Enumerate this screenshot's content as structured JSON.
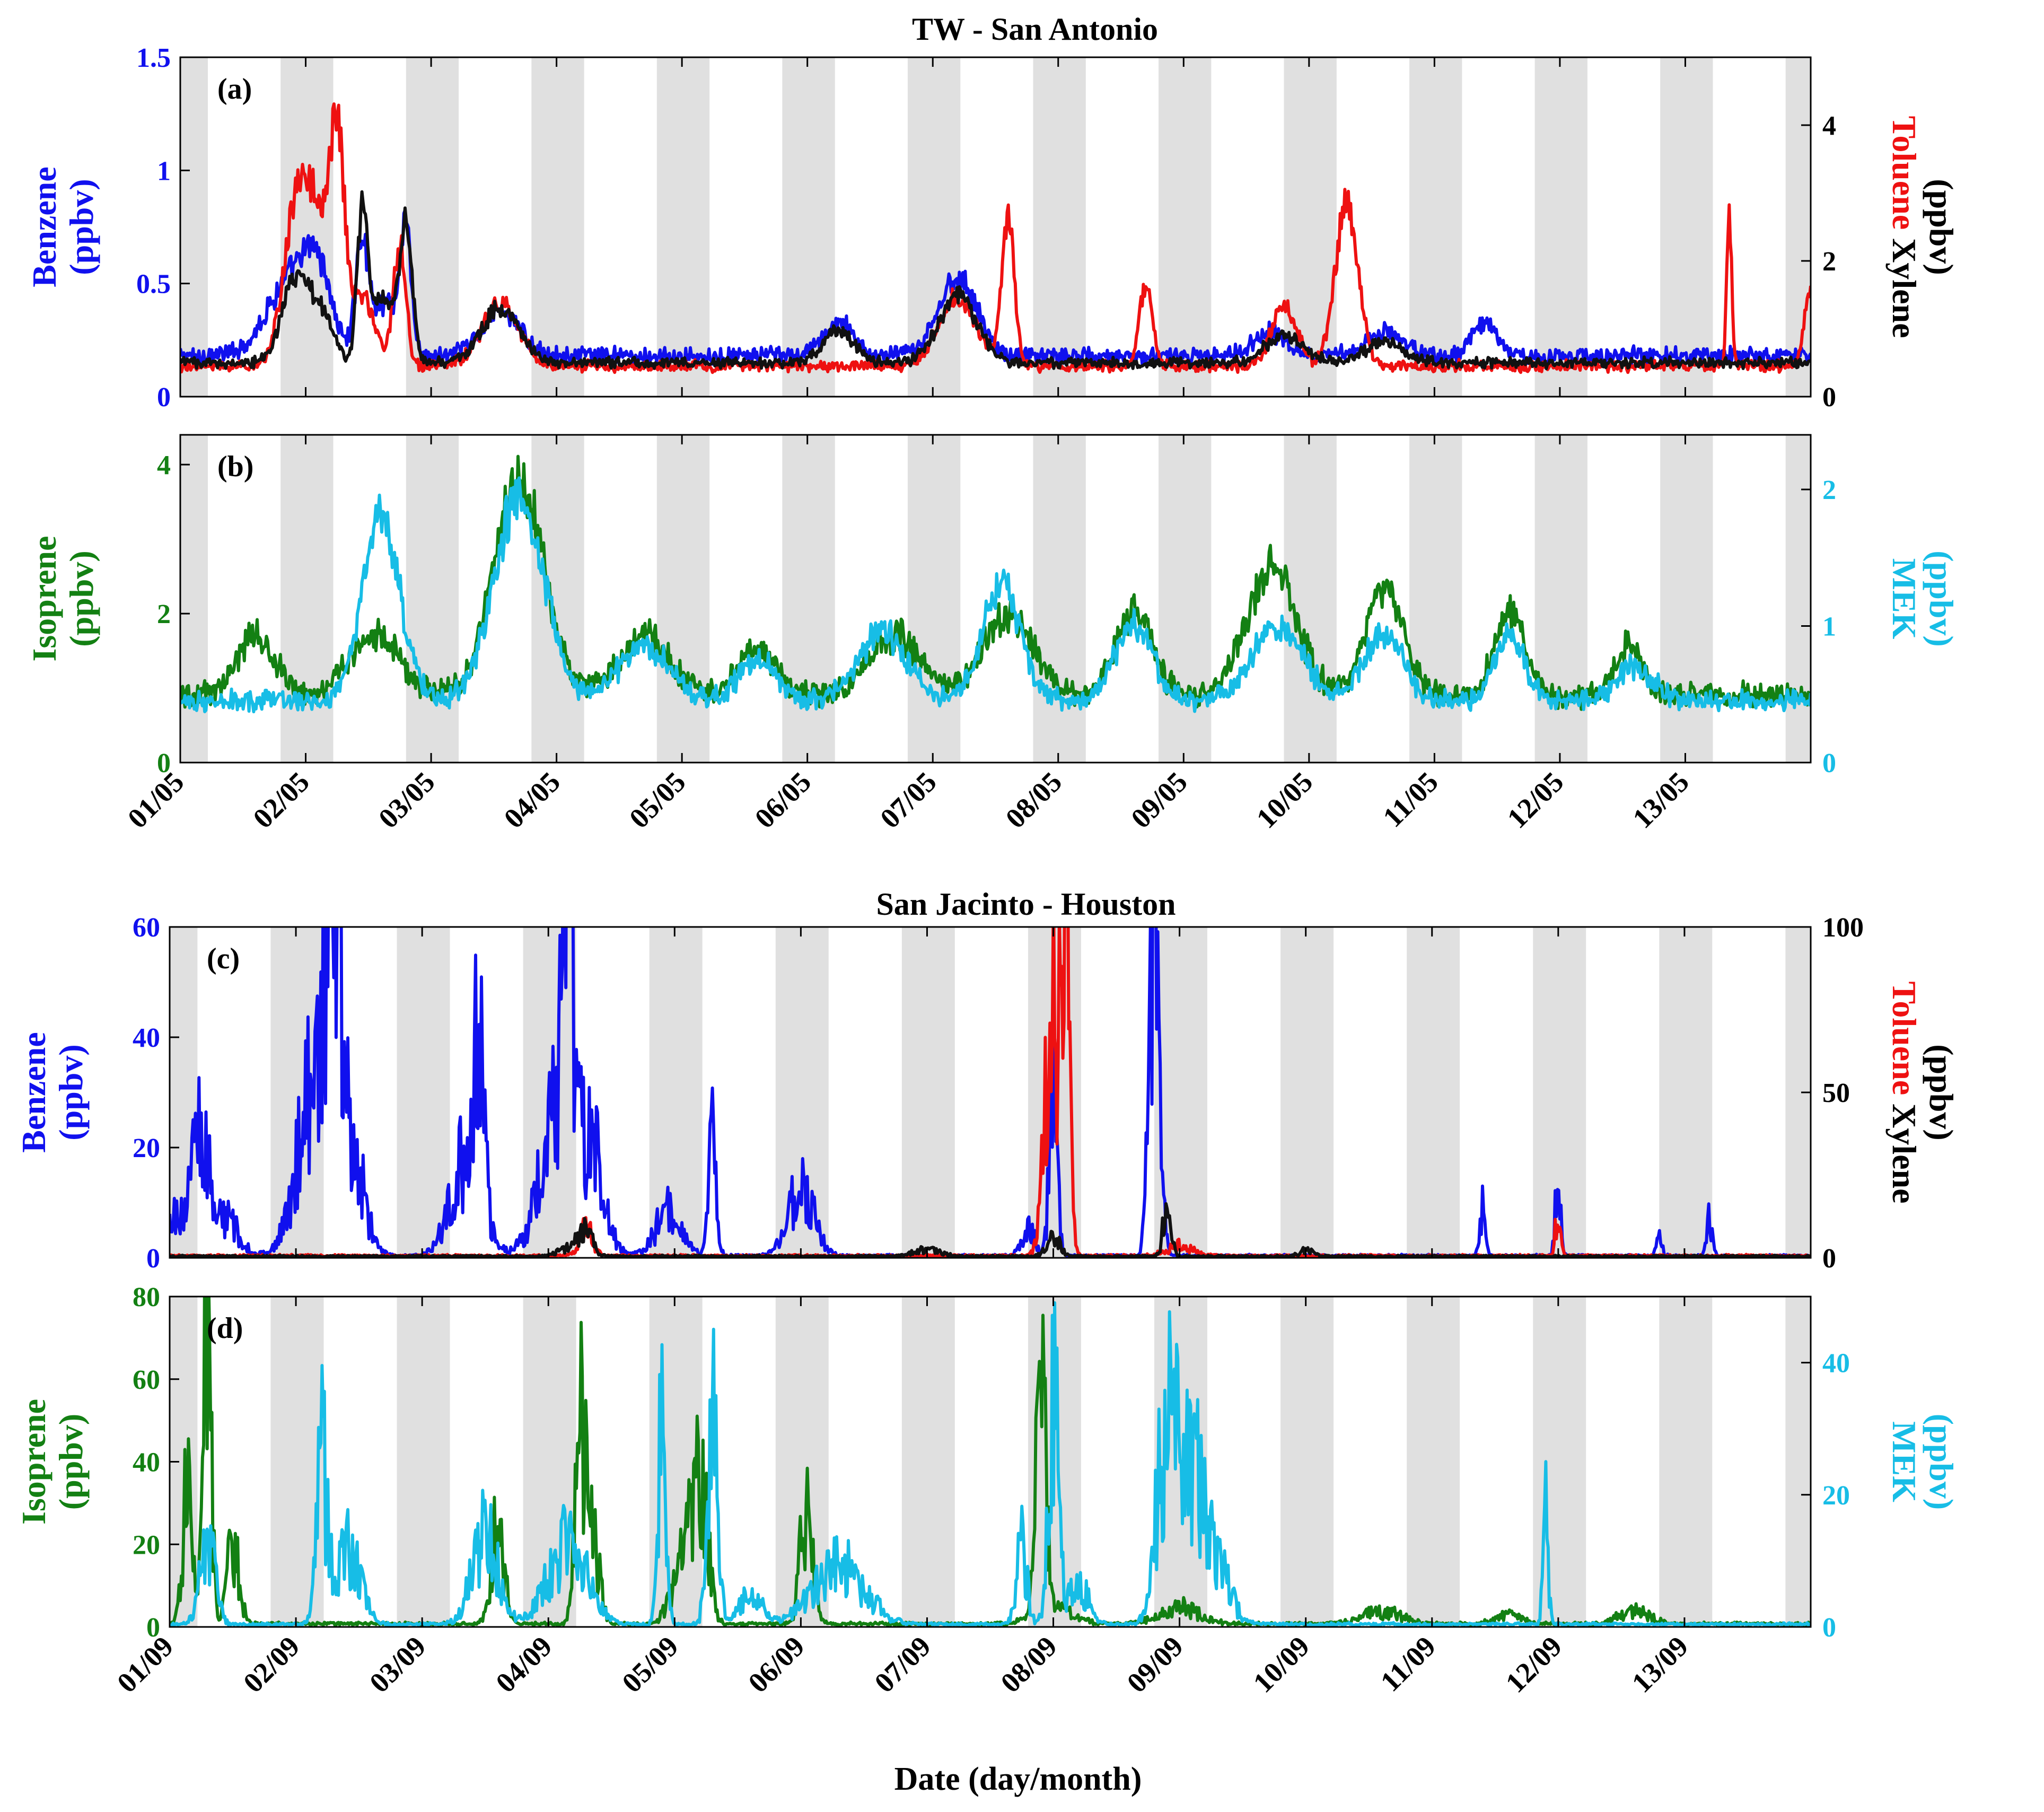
{
  "figure": {
    "top_title": "TW - San Antonio",
    "bottom_title": "San Jacinto - Houston",
    "xlabel": "Date (day/month)"
  },
  "colors": {
    "benzene": "#1010ee",
    "toluene": "#ee1111",
    "xylene": "#111111",
    "isoprene": "#138013",
    "mek": "#17bde6",
    "night_shade": "#e0e0e0"
  },
  "chart_data": [
    {
      "id": "a",
      "type": "line",
      "panel_label": "(a)",
      "title": "TW - San Antonio",
      "x_days": [
        1,
        14
      ],
      "night_shading": true,
      "left_axis": {
        "label_line1": "Benzene",
        "label_line2": "(ppbv)",
        "ylim": [
          0,
          1.5
        ],
        "ticks": [
          0,
          0.5,
          1,
          1.5
        ],
        "tick_labels": [
          "0",
          "0.5",
          "1",
          "1.5"
        ],
        "color_key": "benzene"
      },
      "right_axis": {
        "label_color_word": "Toluene",
        "label_black_word": "Xylene",
        "label_units": "(ppbv)",
        "ylim": [
          0,
          5
        ],
        "ticks": [
          0,
          2,
          4
        ],
        "tick_labels": [
          "0",
          "2",
          "4"
        ]
      },
      "series": [
        {
          "name": "Benzene",
          "axis": "left",
          "color_key": "benzene",
          "baseline": 0.18,
          "noise": 0.03,
          "bumps": [
            [
              1.9,
              0.35,
              0.2
            ],
            [
              2.1,
              0.25,
              0.1
            ],
            [
              2.45,
              0.5,
              0.05
            ],
            [
              2.65,
              0.25,
              0.1
            ],
            [
              2.8,
              0.55,
              0.04
            ],
            [
              3.55,
              0.2,
              0.15
            ],
            [
              6.25,
              0.15,
              0.12
            ],
            [
              7.2,
              0.35,
              0.15
            ],
            [
              9.7,
              0.1,
              0.15
            ],
            [
              10.6,
              0.1,
              0.15
            ],
            [
              11.4,
              0.15,
              0.1
            ]
          ]
        },
        {
          "name": "Toluene",
          "axis": "right",
          "color_key": "toluene",
          "baseline": 0.45,
          "noise": 0.06,
          "bumps": [
            [
              1.9,
              1.4,
              0.1
            ],
            [
              2.05,
              2.2,
              0.12
            ],
            [
              2.25,
              3.0,
              0.06
            ],
            [
              2.45,
              1.0,
              0.1
            ],
            [
              2.75,
              1.8,
              0.05
            ],
            [
              3.55,
              0.9,
              0.15
            ],
            [
              7.2,
              1.0,
              0.15
            ],
            [
              7.6,
              2.2,
              0.05
            ],
            [
              8.7,
              1.2,
              0.05
            ],
            [
              9.8,
              0.9,
              0.1
            ],
            [
              10.3,
              2.4,
              0.09
            ],
            [
              13.35,
              2.3,
              0.02
            ],
            [
              14.0,
              1.1,
              0.05
            ]
          ]
        },
        {
          "name": "Xylene",
          "axis": "right",
          "color_key": "xylene",
          "baseline": 0.5,
          "noise": 0.05,
          "bumps": [
            [
              1.9,
              1.1,
              0.1
            ],
            [
              2.1,
              0.8,
              0.1
            ],
            [
              2.45,
              2.0,
              0.04
            ],
            [
              2.6,
              1.0,
              0.1
            ],
            [
              2.8,
              2.0,
              0.05
            ],
            [
              3.55,
              0.8,
              0.15
            ],
            [
              6.25,
              0.5,
              0.12
            ],
            [
              7.2,
              1.0,
              0.15
            ],
            [
              9.8,
              0.4,
              0.15
            ],
            [
              10.6,
              0.3,
              0.15
            ]
          ]
        }
      ]
    },
    {
      "id": "b",
      "type": "line",
      "panel_label": "(b)",
      "x_days": [
        1,
        14
      ],
      "night_shading": true,
      "left_axis": {
        "label_line1": "Isoprene",
        "label_line2": "(ppbv)",
        "ylim": [
          0,
          4.4
        ],
        "ticks": [
          0,
          2,
          4
        ],
        "tick_labels": [
          "0",
          "2",
          "4"
        ],
        "color_key": "isoprene"
      },
      "right_axis": {
        "label_line1": "MEK",
        "label_line2": "(ppbv)",
        "ylim": [
          0,
          2.4
        ],
        "ticks": [
          0,
          1,
          2
        ],
        "tick_labels": [
          "0",
          "1",
          "2"
        ],
        "color_key": "mek"
      },
      "tick_labels_x": [
        "01/05",
        "02/05",
        "03/05",
        "04/05",
        "05/05",
        "06/05",
        "07/05",
        "08/05",
        "09/05",
        "10/05",
        "11/05",
        "12/05",
        "13/05"
      ],
      "series": [
        {
          "name": "Isoprene",
          "axis": "left",
          "color_key": "isoprene",
          "baseline": 0.9,
          "noise": 0.12,
          "bumps": [
            [
              1.6,
              0.8,
              0.15
            ],
            [
              2.55,
              0.8,
              0.2
            ],
            [
              3.7,
              2.9,
              0.2
            ],
            [
              4.7,
              0.8,
              0.2
            ],
            [
              5.6,
              0.6,
              0.15
            ],
            [
              6.7,
              0.8,
              0.2
            ],
            [
              7.6,
              1.1,
              0.2
            ],
            [
              8.6,
              1.1,
              0.15
            ],
            [
              9.7,
              1.7,
              0.2
            ],
            [
              10.6,
              1.4,
              0.15
            ],
            [
              11.6,
              1.1,
              0.12
            ],
            [
              12.55,
              0.7,
              0.1
            ]
          ]
        },
        {
          "name": "MEK",
          "axis": "right",
          "color_key": "mek",
          "baseline": 0.45,
          "noise": 0.05,
          "bumps": [
            [
              2.6,
              1.35,
              0.15
            ],
            [
              3.7,
              1.5,
              0.2
            ],
            [
              4.7,
              0.4,
              0.2
            ],
            [
              5.6,
              0.3,
              0.15
            ],
            [
              6.6,
              0.5,
              0.2
            ],
            [
              7.55,
              0.85,
              0.15
            ],
            [
              8.6,
              0.55,
              0.15
            ],
            [
              9.75,
              0.55,
              0.2
            ],
            [
              10.6,
              0.5,
              0.15
            ],
            [
              11.6,
              0.5,
              0.12
            ],
            [
              12.6,
              0.25,
              0.15
            ]
          ]
        }
      ]
    },
    {
      "id": "c",
      "type": "line",
      "panel_label": "(c)",
      "title": "San Jacinto - Houston",
      "x_days": [
        1,
        14
      ],
      "night_shading": true,
      "left_axis": {
        "label_line1": "Benzene",
        "label_line2": "(ppbv)",
        "ylim": [
          0,
          60
        ],
        "ticks": [
          0,
          20,
          40,
          60
        ],
        "tick_labels": [
          "0",
          "20",
          "40",
          "60"
        ],
        "color_key": "benzene"
      },
      "right_axis": {
        "label_color_word": "Toluene",
        "label_black_word": "Xylene",
        "label_units": "(ppbv)",
        "ylim": [
          0,
          100
        ],
        "ticks": [
          0,
          50,
          100
        ],
        "tick_labels": [
          "0",
          "50",
          "100"
        ]
      },
      "series": [
        {
          "name": "Benzene",
          "axis": "left",
          "color_key": "benzene",
          "baseline": 0.3,
          "noise": 0.2,
          "spiky": true,
          "bumps": [
            [
              1.1,
              8,
              0.15
            ],
            [
              1.25,
              22,
              0.05
            ],
            [
              1.45,
              6,
              0.1
            ],
            [
              2.2,
              38,
              0.15
            ],
            [
              2.3,
              45,
              0.05
            ],
            [
              2.45,
              12,
              0.1
            ],
            [
              3.35,
              18,
              0.12
            ],
            [
              3.45,
              28,
              0.04
            ],
            [
              4.1,
              26,
              0.15
            ],
            [
              4.15,
              45,
              0.04
            ],
            [
              4.35,
              14,
              0.1
            ],
            [
              4.95,
              8,
              0.1
            ],
            [
              5.3,
              24,
              0.03
            ],
            [
              6.0,
              12,
              0.1
            ],
            [
              7.8,
              5,
              0.05
            ],
            [
              8.0,
              35,
              0.03
            ],
            [
              8.8,
              62,
              0.04
            ],
            [
              11.4,
              10,
              0.02
            ],
            [
              12.0,
              16,
              0.02
            ],
            [
              12.8,
              4,
              0.02
            ],
            [
              13.2,
              7,
              0.02
            ]
          ]
        },
        {
          "name": "Toluene",
          "axis": "right",
          "color_key": "toluene",
          "baseline": 0.5,
          "noise": 0.3,
          "spiky": true,
          "bumps": [
            [
              4.3,
              8,
              0.05
            ],
            [
              8.0,
              75,
              0.06
            ],
            [
              8.1,
              95,
              0.03
            ],
            [
              9.0,
              3,
              0.1
            ],
            [
              12.0,
              15,
              0.02
            ]
          ]
        },
        {
          "name": "Xylene",
          "axis": "right",
          "color_key": "xylene",
          "baseline": 0.4,
          "noise": 0.2,
          "spiky": true,
          "bumps": [
            [
              4.2,
              3,
              0.1
            ],
            [
              4.3,
              6,
              0.05
            ],
            [
              7.0,
              2,
              0.1
            ],
            [
              8.0,
              6,
              0.05
            ],
            [
              8.9,
              16,
              0.03
            ],
            [
              10.0,
              2,
              0.05
            ]
          ]
        }
      ]
    },
    {
      "id": "d",
      "type": "line",
      "panel_label": "(d)",
      "x_days": [
        1,
        14
      ],
      "night_shading": true,
      "left_axis": {
        "label_line1": "Isoprene",
        "label_line2": "(ppbv)",
        "ylim": [
          0,
          80
        ],
        "ticks": [
          0,
          20,
          40,
          60,
          80
        ],
        "tick_labels": [
          "0",
          "20",
          "40",
          "60",
          "80"
        ],
        "color_key": "isoprene"
      },
      "right_axis": {
        "label_line1": "MEK",
        "label_line2": "(ppbv)",
        "ylim": [
          0,
          50
        ],
        "ticks": [
          0,
          20,
          40
        ],
        "tick_labels": [
          "0",
          "20",
          "40"
        ],
        "color_key": "mek"
      },
      "tick_labels_x": [
        "01/09",
        "02/09",
        "03/09",
        "04/09",
        "05/09",
        "06/09",
        "07/09",
        "08/09",
        "09/09",
        "10/09",
        "11/09",
        "12/09",
        "13/09"
      ],
      "series": [
        {
          "name": "Isoprene",
          "axis": "left",
          "color_key": "isoprene",
          "baseline": 0.6,
          "noise": 0.3,
          "spiky": true,
          "bumps": [
            [
              1.15,
              40,
              0.04
            ],
            [
              1.3,
              76,
              0.03
            ],
            [
              1.5,
              18,
              0.05
            ],
            [
              3.6,
              24,
              0.05
            ],
            [
              4.25,
              44,
              0.04
            ],
            [
              4.35,
              22,
              0.05
            ],
            [
              5.2,
              35,
              0.06
            ],
            [
              5.05,
              14,
              0.08
            ],
            [
              6.05,
              30,
              0.05
            ],
            [
              7.9,
              55,
              0.04
            ],
            [
              8.0,
              4,
              0.15
            ],
            [
              9.0,
              4,
              0.15
            ],
            [
              10.6,
              3,
              0.15
            ],
            [
              11.6,
              2,
              0.1
            ],
            [
              12.6,
              3,
              0.12
            ]
          ]
        },
        {
          "name": "MEK",
          "axis": "right",
          "color_key": "mek",
          "baseline": 0.3,
          "noise": 0.2,
          "spiky": true,
          "bumps": [
            [
              1.3,
              12,
              0.06
            ],
            [
              2.2,
              25,
              0.04
            ],
            [
              2.4,
              12,
              0.1
            ],
            [
              3.5,
              14,
              0.1
            ],
            [
              4.15,
              12,
              0.15
            ],
            [
              4.9,
              32,
              0.03
            ],
            [
              5.3,
              33,
              0.04
            ],
            [
              5.6,
              5,
              0.08
            ],
            [
              6.3,
              9,
              0.2
            ],
            [
              7.75,
              12,
              0.04
            ],
            [
              8.0,
              35,
              0.04
            ],
            [
              8.2,
              6,
              0.08
            ],
            [
              8.9,
              28,
              0.08
            ],
            [
              9.1,
              22,
              0.1
            ],
            [
              9.3,
              8,
              0.1
            ],
            [
              11.9,
              16,
              0.02
            ]
          ]
        }
      ]
    }
  ]
}
